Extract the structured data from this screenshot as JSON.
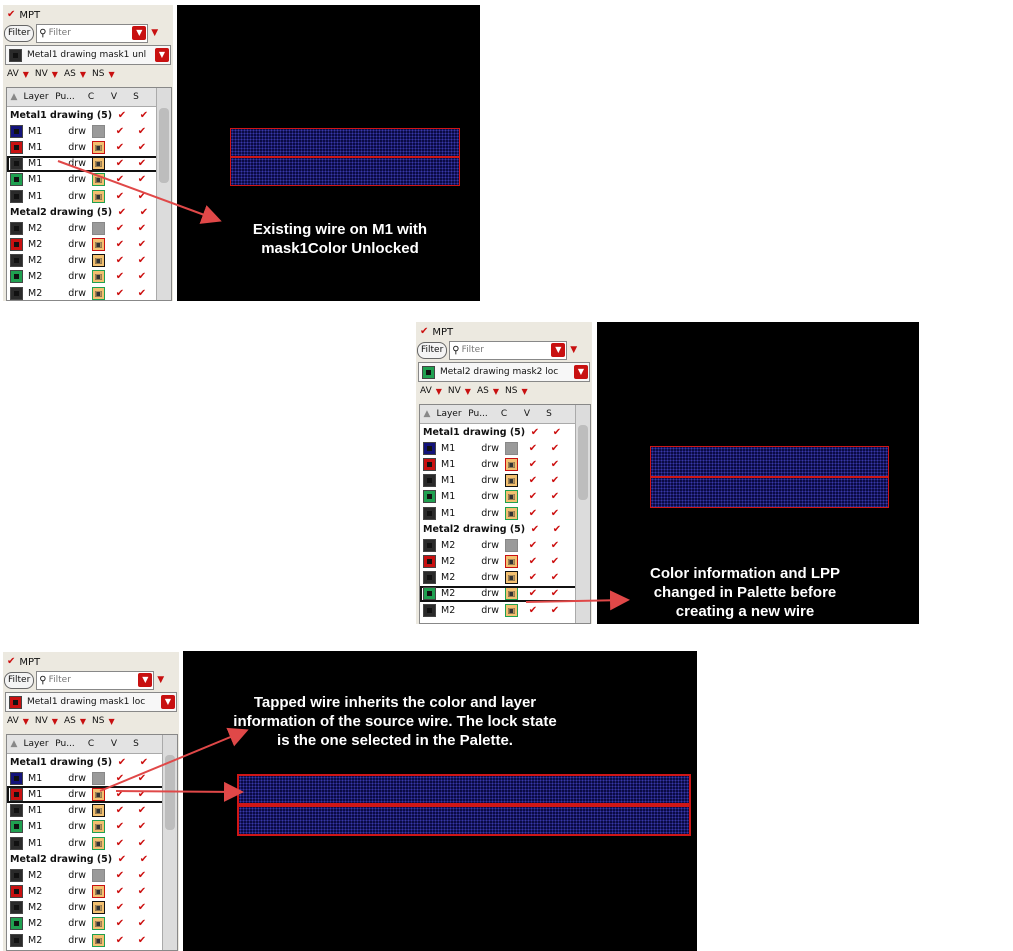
{
  "colors": {
    "accent": "#cc1111",
    "canvas": "#000000",
    "wire_border": "#d01616",
    "mask_blue": "#13137a",
    "mask_red": "#c81010",
    "mask_green": "#1fa050",
    "mask_dark": "#2a2a2a"
  },
  "panel_common": {
    "title": "MPT",
    "filter_button": "Filter",
    "filter_placeholder": "Filter",
    "visibility": [
      "AV",
      "NV",
      "AS",
      "NS"
    ],
    "columns": {
      "layer": "Layer",
      "purpose": "Pu...",
      "color": "C",
      "visible": "V",
      "selectable": "S"
    },
    "groups": [
      {
        "label": "Metal1 drawing (5)",
        "rows": [
          {
            "layer": "M1",
            "purpose": "drw",
            "mask": "blue",
            "lock": "gray"
          },
          {
            "layer": "M1",
            "purpose": "drw",
            "mask": "red",
            "lock": "red"
          },
          {
            "layer": "M1",
            "purpose": "drw",
            "mask": "dark",
            "lock": "dark"
          },
          {
            "layer": "M1",
            "purpose": "drw",
            "mask": "green",
            "lock": "green"
          },
          {
            "layer": "M1",
            "purpose": "drw",
            "mask": "dark",
            "lock": "green"
          }
        ]
      },
      {
        "label": "Metal2 drawing (5)",
        "rows": [
          {
            "layer": "M2",
            "purpose": "drw",
            "mask": "dark",
            "lock": "gray"
          },
          {
            "layer": "M2",
            "purpose": "drw",
            "mask": "red",
            "lock": "red"
          },
          {
            "layer": "M2",
            "purpose": "drw",
            "mask": "dark",
            "lock": "dark"
          },
          {
            "layer": "M2",
            "purpose": "drw",
            "mask": "green",
            "lock": "green"
          },
          {
            "layer": "M2",
            "purpose": "drw",
            "mask": "dark",
            "lock": "green"
          }
        ]
      }
    ]
  },
  "panels": [
    {
      "lpp": "Metal1 drawing mask1 unl",
      "lpp_mask": "dark",
      "selected_row": 2
    },
    {
      "lpp": "Metal2 drawing mask2 loc",
      "lpp_mask": "green",
      "selected_row": 8
    },
    {
      "lpp": "Metal1 drawing mask1 loc",
      "lpp_mask": "red",
      "selected_row": 1
    }
  ],
  "notes": [
    "Existing wire on M1 with\nmask1Color Unlocked",
    "Color information and LPP\nchanged in Palette before\ncreating a new wire",
    "Tapped wire inherits the color and layer\ninformation of the source wire. The lock state\nis the one selected in the Palette."
  ]
}
